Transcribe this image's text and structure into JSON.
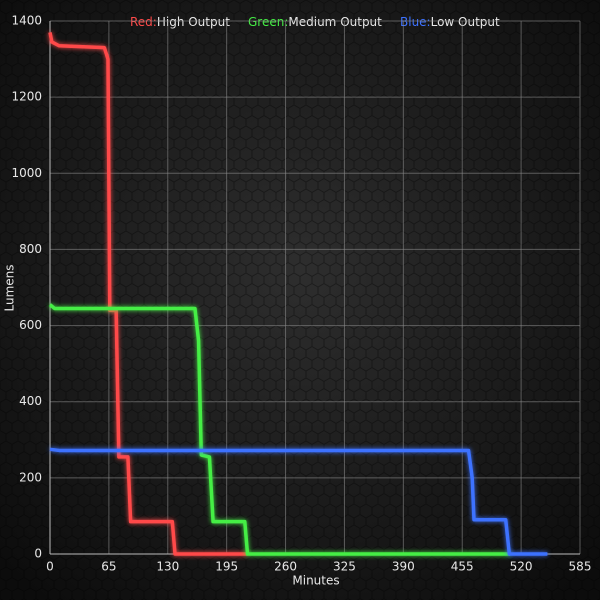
{
  "chart_data": {
    "type": "line",
    "xlabel": "Minutes",
    "ylabel": "Lumens",
    "xlim": [
      0,
      585
    ],
    "xticks": [
      0,
      65,
      130,
      195,
      260,
      325,
      390,
      455,
      520,
      585
    ],
    "ylim": [
      0,
      1400
    ],
    "yticks": [
      0,
      200,
      400,
      600,
      800,
      1000,
      1200,
      1400
    ],
    "grid": true,
    "series": [
      {
        "name": "High Output",
        "legend_prefix": "Red:",
        "color": "#ff4a4a",
        "x": [
          0,
          2,
          10,
          60,
          64,
          66,
          73,
          76,
          86,
          89,
          135,
          138,
          218
        ],
        "values": [
          1370,
          1345,
          1335,
          1330,
          1300,
          640,
          640,
          255,
          255,
          85,
          85,
          0,
          0
        ]
      },
      {
        "name": "Medium Output",
        "legend_prefix": "Green:",
        "color": "#44ee44",
        "x": [
          0,
          5,
          160,
          164,
          167,
          176,
          180,
          215,
          218,
          508
        ],
        "values": [
          655,
          645,
          645,
          560,
          260,
          255,
          85,
          85,
          0,
          0
        ]
      },
      {
        "name": "Low Output",
        "legend_prefix": "Blue:",
        "color": "#3d72ff",
        "x": [
          0,
          10,
          462,
          466,
          468,
          503,
          507,
          549
        ],
        "values": [
          275,
          272,
          272,
          200,
          90,
          90,
          0,
          0
        ]
      }
    ]
  }
}
